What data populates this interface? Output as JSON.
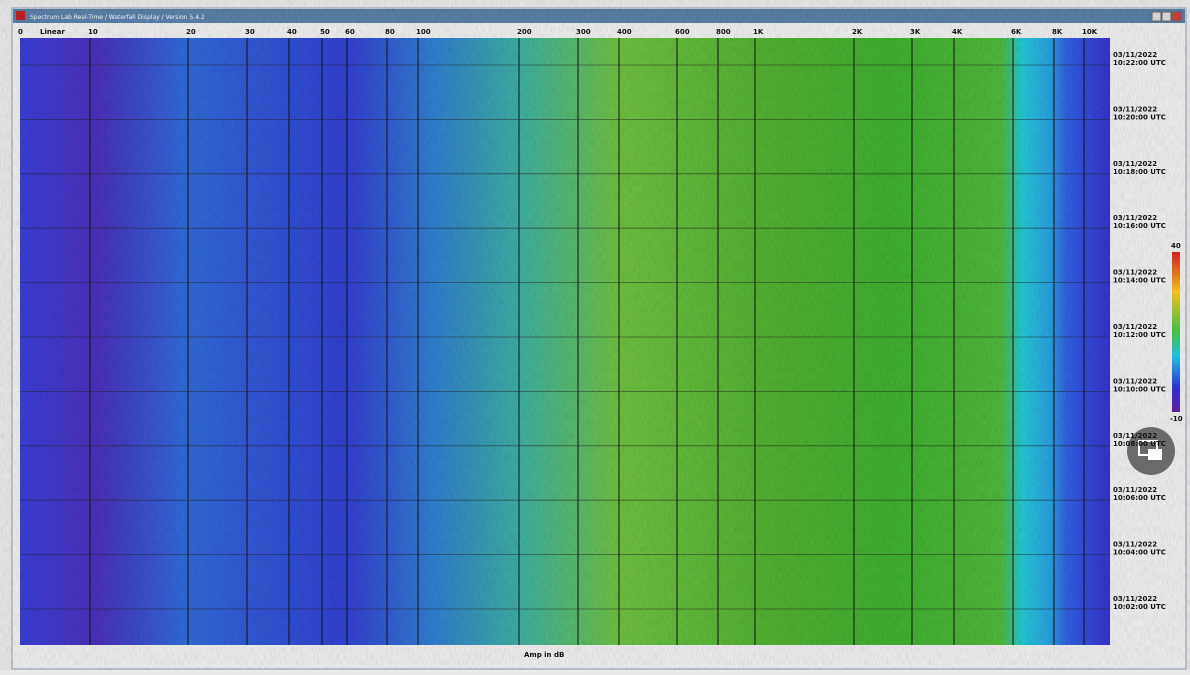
{
  "window": {
    "title": "Spectrum Lab Real-Time / Waterfall Display / Version 5.4.2"
  },
  "frequency_axis": {
    "labels": [
      "0",
      "Linear",
      "10",
      "20",
      "30",
      "40",
      "50",
      "60",
      "80",
      "100",
      "200",
      "300",
      "400",
      "600",
      "800",
      "1K",
      "2K",
      "3K",
      "4K",
      "6K",
      "8K",
      "10K"
    ]
  },
  "time_axis": {
    "labels": [
      {
        "date": "03/11/2022",
        "time": "10:22:00 UTC"
      },
      {
        "date": "03/11/2022",
        "time": "10:20:00 UTC"
      },
      {
        "date": "03/11/2022",
        "time": "10:18:00 UTC"
      },
      {
        "date": "03/11/2022",
        "time": "10:16:00 UTC"
      },
      {
        "date": "03/11/2022",
        "time": "10:14:00 UTC"
      },
      {
        "date": "03/11/2022",
        "time": "10:12:00 UTC"
      },
      {
        "date": "03/11/2022",
        "time": "10:10:00 UTC"
      },
      {
        "date": "03/11/2022",
        "time": "10:08:00 UTC"
      },
      {
        "date": "03/11/2022",
        "time": "10:06:00 UTC"
      },
      {
        "date": "03/11/2022",
        "time": "10:04:00 UTC"
      },
      {
        "date": "03/11/2022",
        "time": "10:02:00 UTC"
      }
    ]
  },
  "color_scale": {
    "top": "40",
    "bottom": "-10"
  },
  "footer": {
    "label": "Amp in dB"
  }
}
